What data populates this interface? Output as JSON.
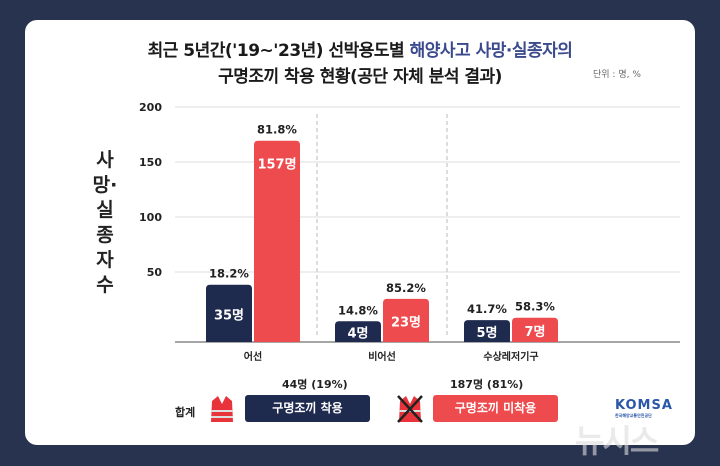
{
  "title": {
    "line1_a": "최근 5년간('19~'23년) 선박용도별 ",
    "line1_b": "해양사고 사망·실종자의",
    "line2": "구명조끼 착용 현황(공단 자체 분석 결과)"
  },
  "unit": "단위 : 명, %",
  "colors": {
    "worn": "#1f2a4f",
    "not_worn": "#ee4b4e",
    "background": "#283350"
  },
  "chart_data": {
    "type": "bar",
    "ylabel": "사망·실종자 수",
    "yticks": [
      50,
      100,
      150,
      200
    ],
    "ylim": [
      0,
      200
    ],
    "categories": [
      "어선",
      "비어선",
      "수상레저기구"
    ],
    "series": [
      {
        "name": "구명조끼 착용",
        "values": [
          35,
          4,
          5
        ],
        "labels": [
          "35명",
          "4명",
          "5명"
        ],
        "pct": [
          "18.2%",
          "14.8%",
          "41.7%"
        ]
      },
      {
        "name": "구명조끼 미착용",
        "values": [
          157,
          23,
          7
        ],
        "labels": [
          "157명",
          "23명",
          "7명"
        ],
        "pct": [
          "81.8%",
          "85.2%",
          "58.3%"
        ]
      }
    ]
  },
  "summary": {
    "label": "합계",
    "worn_total": "44명 (19%)",
    "not_worn_total": "187명 (81%)",
    "worn_label": "구명조끼 착용",
    "not_worn_label": "구명조끼 미착용"
  },
  "logo": {
    "name": "KOMSA",
    "sub": "한국해양교통안전공단"
  },
  "watermark": "뉴시스"
}
